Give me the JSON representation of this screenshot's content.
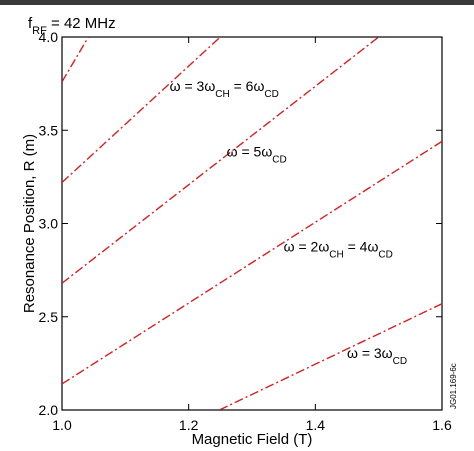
{
  "chart_data": {
    "type": "line",
    "title": "fRF = 42 MHz",
    "title_main": "f",
    "title_sub": "RF",
    "title_rest": " = 42 MHz",
    "xlabel": "Magnetic Field (T)",
    "ylabel": "Resonance Position, R (m)",
    "xlim": [
      1.0,
      1.6
    ],
    "ylim": [
      2.0,
      4.0
    ],
    "xticks": [
      "1.0",
      "1.2",
      "1.4",
      "1.6"
    ],
    "xtick_values": [
      1.0,
      1.2,
      1.4,
      1.6
    ],
    "yticks": [
      "2.0",
      "2.5",
      "3.0",
      "3.5",
      "4.0"
    ],
    "ytick_values": [
      2.0,
      2.5,
      3.0,
      3.5,
      4.0
    ],
    "grid": false,
    "line_color": "#d62020",
    "line_style": "dash-dot",
    "series": [
      {
        "x": [
          1.0,
          1.0417
        ],
        "y": [
          3.76,
          4.0
        ]
      },
      {
        "x": [
          1.0,
          1.25
        ],
        "y": [
          3.22,
          4.0
        ]
      },
      {
        "x": [
          1.0,
          1.5
        ],
        "y": [
          2.68,
          4.0
        ]
      },
      {
        "x": [
          1.0,
          1.6
        ],
        "y": [
          2.14,
          3.44
        ]
      },
      {
        "x": [
          1.2485,
          1.6
        ],
        "y": [
          2.0,
          2.57
        ]
      }
    ],
    "annotations": [
      {
        "parts": [
          {
            "t": "ω = 3ω"
          },
          {
            "t": "CH",
            "sub": true
          },
          {
            "t": " = 6ω"
          },
          {
            "t": "CD",
            "sub": true
          }
        ],
        "x": 1.17,
        "y": 3.71
      },
      {
        "parts": [
          {
            "t": "ω = 5ω"
          },
          {
            "t": "CD",
            "sub": true
          }
        ],
        "x": 1.26,
        "y": 3.36
      },
      {
        "parts": [
          {
            "t": "ω = 2ω"
          },
          {
            "t": "CH",
            "sub": true
          },
          {
            "t": " = 4ω"
          },
          {
            "t": "CD",
            "sub": true
          }
        ],
        "x": 1.35,
        "y": 2.85
      },
      {
        "parts": [
          {
            "t": "ω = 3ω"
          },
          {
            "t": "CD",
            "sub": true
          }
        ],
        "x": 1.45,
        "y": 2.28
      }
    ],
    "watermark": "JG01.169-6c"
  }
}
